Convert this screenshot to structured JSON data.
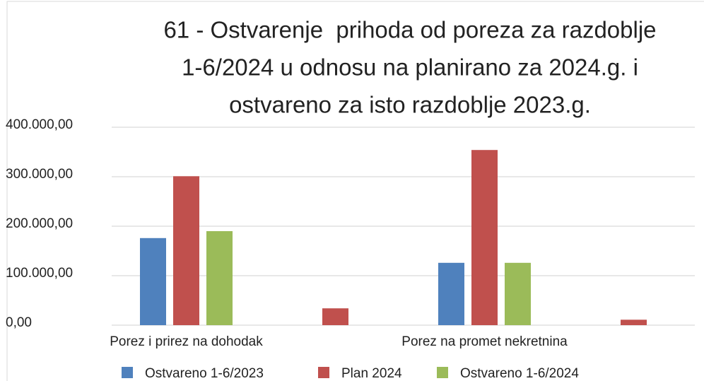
{
  "chart_data": {
    "type": "bar",
    "title": [
      "61 - Ostvarenje  prihoda od poreza za razdoblje",
      "1-6/2024 u odnosu na planirano za 2024.g. i",
      "ostvareno za isto razdoblje 2023.g."
    ],
    "categories": [
      "Porez i prirez na dohodak",
      null,
      "Porez na promet nekretnina",
      null
    ],
    "series": [
      {
        "name": "Ostvareno 1-6/2023",
        "color": "#4f81bd",
        "values": [
          176000,
          0,
          126000,
          0
        ]
      },
      {
        "name": "Plan 2024",
        "color": "#c0504d",
        "values": [
          301000,
          34000,
          354000,
          11000
        ]
      },
      {
        "name": "Ostvareno 1-6/2024",
        "color": "#9bbb59",
        "values": [
          190000,
          0,
          126000,
          0
        ]
      }
    ],
    "ylim": [
      0,
      400000
    ],
    "yticks": [
      {
        "value": 0,
        "label": "0,00"
      },
      {
        "value": 100000,
        "label": "100.000,00"
      },
      {
        "value": 200000,
        "label": "200.000,00"
      },
      {
        "value": 300000,
        "label": "300.000,00"
      },
      {
        "value": 400000,
        "label": "400.000,00"
      }
    ],
    "grid": true,
    "legend": "bottom"
  }
}
